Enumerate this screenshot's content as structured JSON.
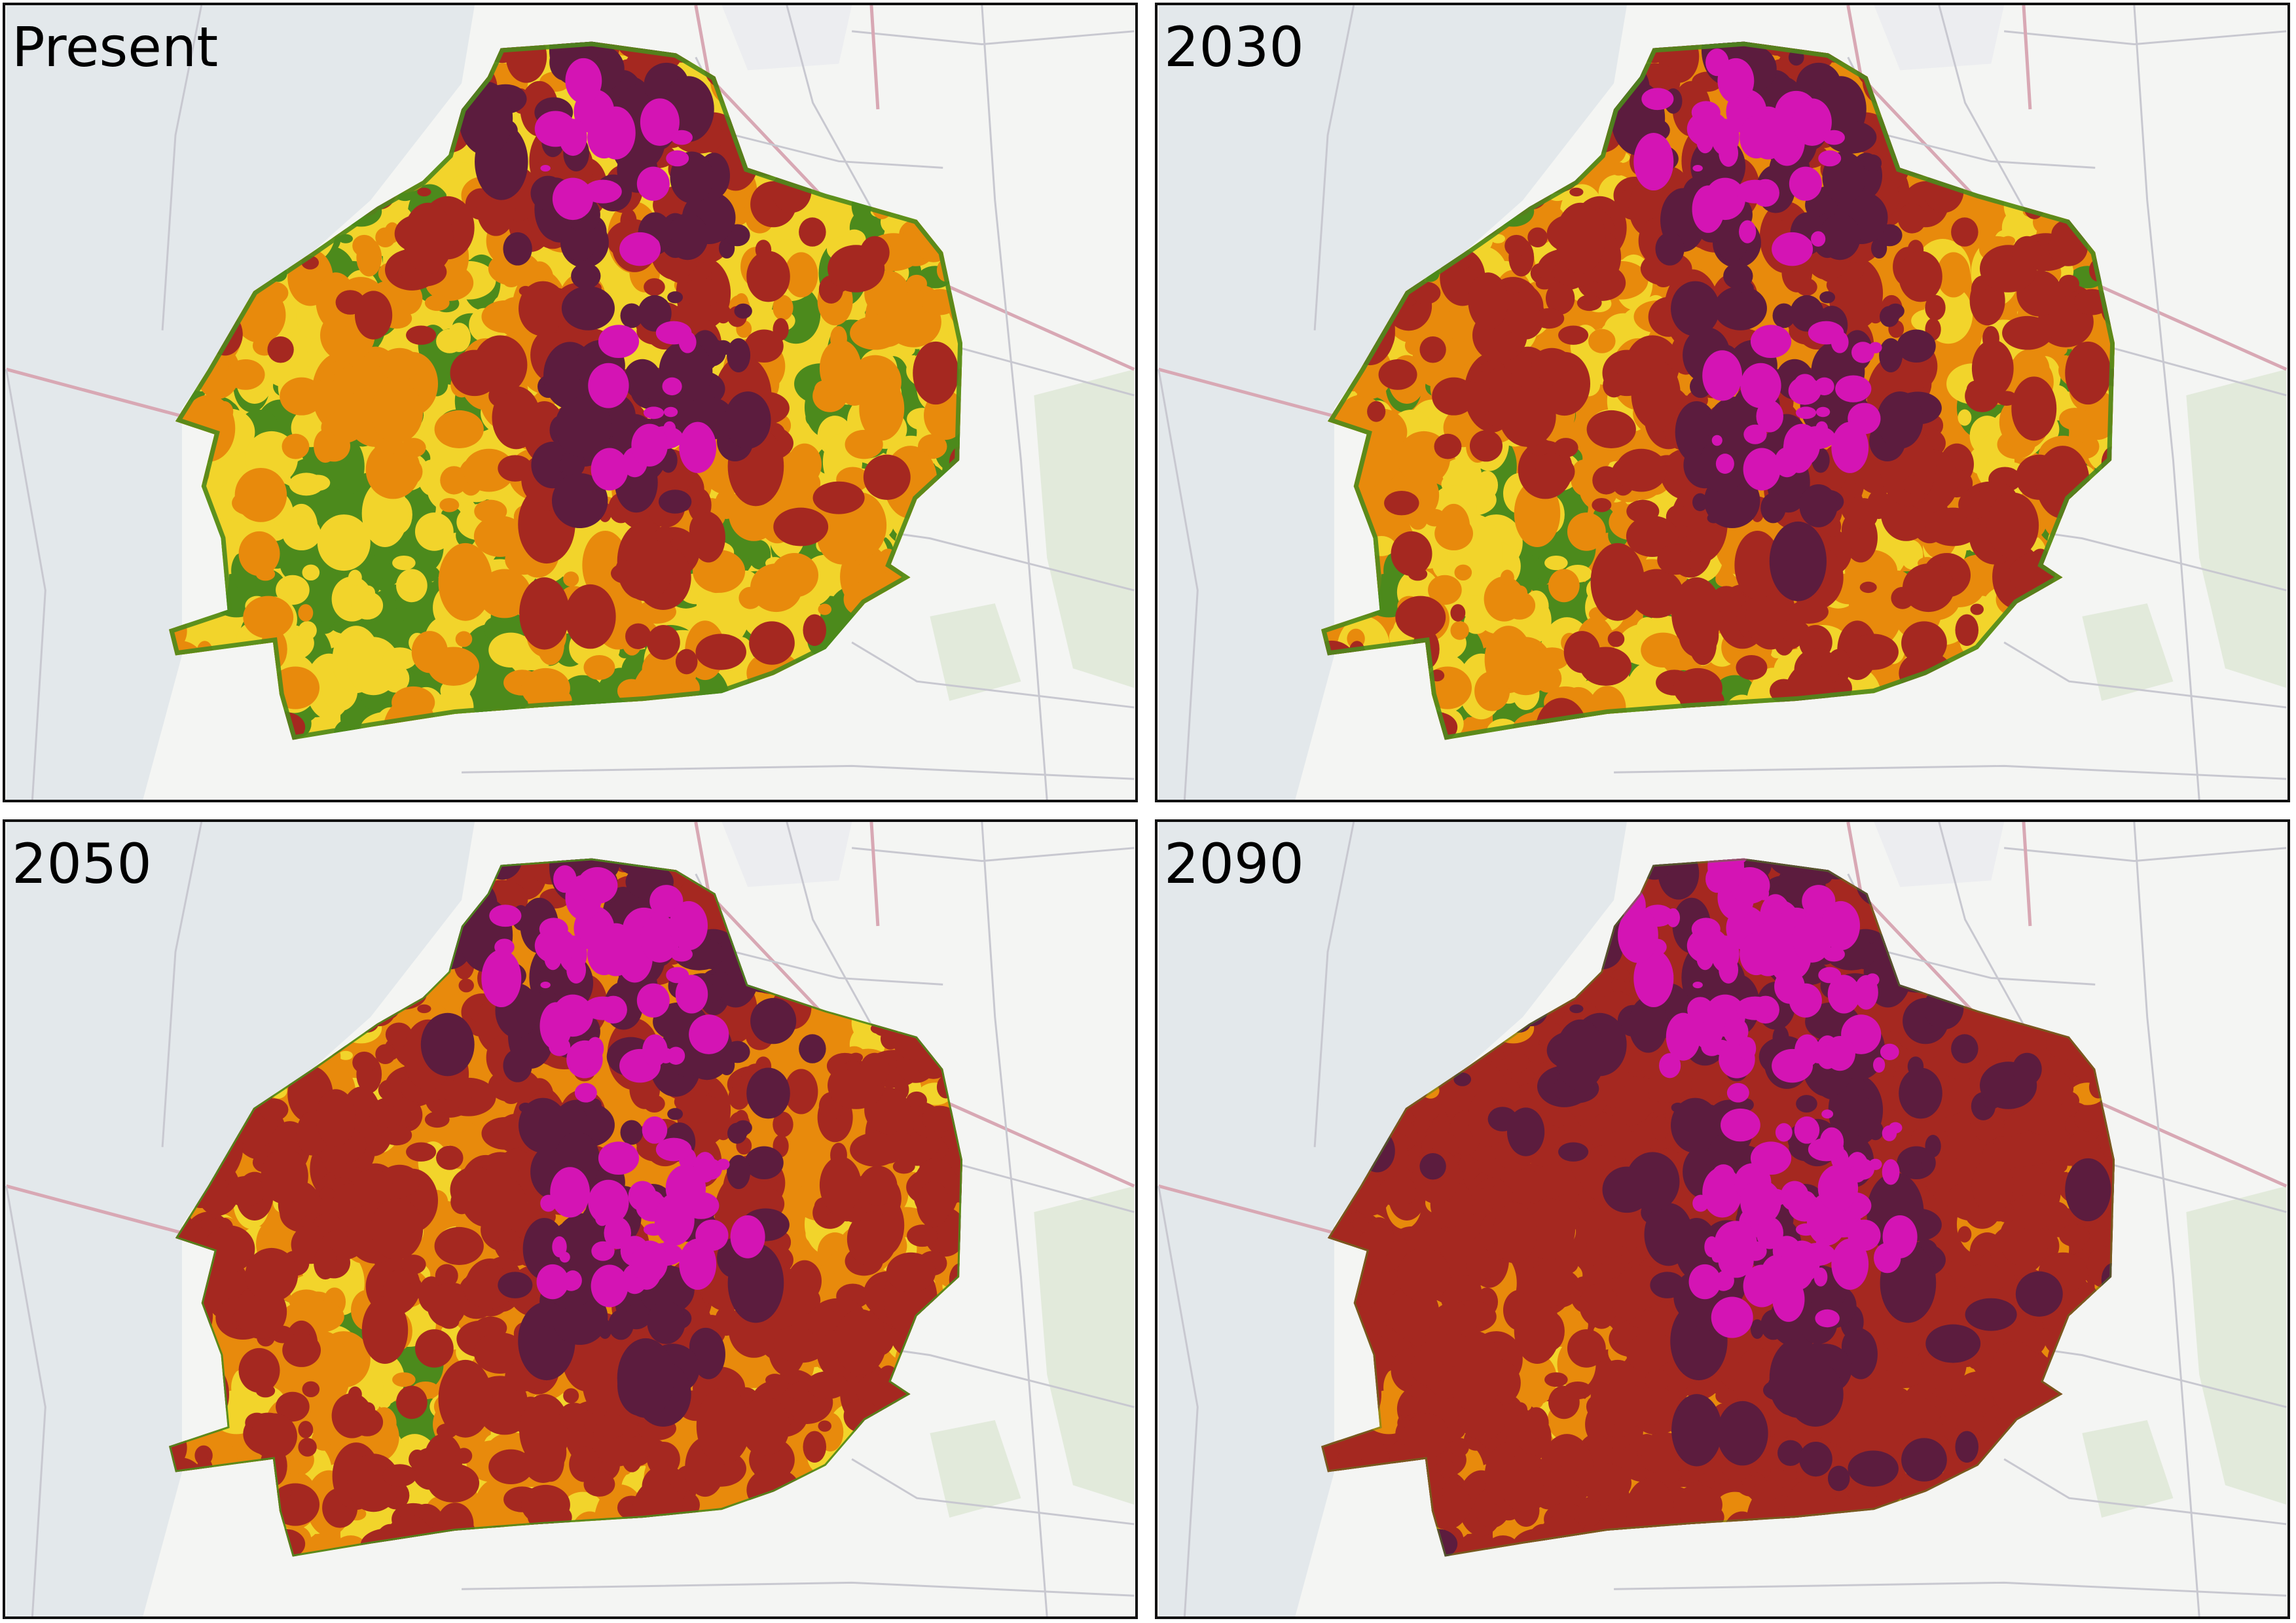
{
  "panels": [
    {
      "title": "Present",
      "scenario": 0
    },
    {
      "title": "2030",
      "scenario": 1
    },
    {
      "title": "2050",
      "scenario": 2
    },
    {
      "title": "2090",
      "scenario": 3
    }
  ],
  "colors": {
    "water": "#e3e8eb",
    "land": "#f4f5f3",
    "forest": "#e2eadb",
    "road": "#c8c8d0",
    "road_major": "#d8a8b4",
    "cat_green": "#4c8a1c",
    "cat_yellow": "#f2d42b",
    "cat_orange": "#e88a0c",
    "cat_red": "#a52820",
    "cat_dark": "#5c1c3e",
    "cat_magenta": "#d414b4"
  }
}
